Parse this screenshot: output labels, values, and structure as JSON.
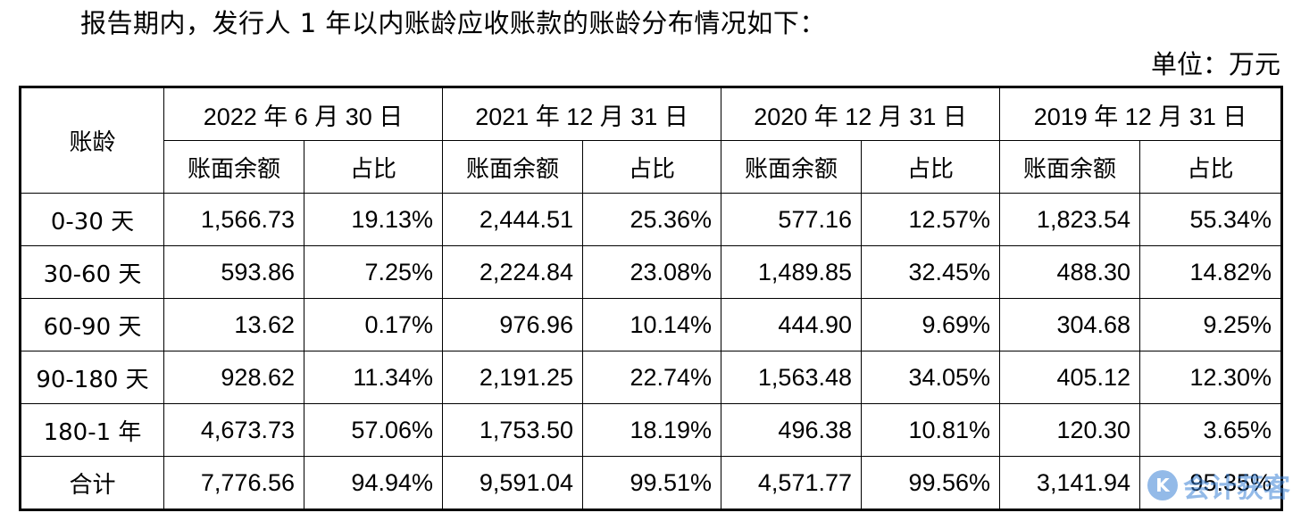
{
  "intro_text": "报告期内，发行人 1 年以内账龄应收账款的账龄分布情况如下：",
  "unit_text": "单位：万元",
  "table": {
    "row_header": "账龄",
    "periods": [
      "2022 年 6 月 30 日",
      "2021 年 12 月 31 日",
      "2020 年 12 月 31 日",
      "2019 年 12 月 31 日"
    ],
    "sub_headers": [
      "账面余额",
      "占比",
      "账面余额",
      "占比",
      "账面余额",
      "占比",
      "账面余额",
      "占比"
    ],
    "rows": [
      {
        "label": "0-30 天",
        "cells": [
          "1,566.73",
          "19.13%",
          "2,444.51",
          "25.36%",
          "577.16",
          "12.57%",
          "1,823.54",
          "55.34%"
        ]
      },
      {
        "label": "30-60 天",
        "cells": [
          "593.86",
          "7.25%",
          "2,224.84",
          "23.08%",
          "1,489.85",
          "32.45%",
          "488.30",
          "14.82%"
        ]
      },
      {
        "label": "60-90 天",
        "cells": [
          "13.62",
          "0.17%",
          "976.96",
          "10.14%",
          "444.90",
          "9.69%",
          "304.68",
          "9.25%"
        ]
      },
      {
        "label": "90-180 天",
        "cells": [
          "928.62",
          "11.34%",
          "2,191.25",
          "22.74%",
          "1,563.48",
          "34.05%",
          "405.12",
          "12.30%"
        ]
      },
      {
        "label": "180-1 年",
        "cells": [
          "4,673.73",
          "57.06%",
          "1,753.50",
          "18.19%",
          "496.38",
          "10.81%",
          "120.30",
          "3.65%"
        ]
      },
      {
        "label": "合计",
        "cells": [
          "7,776.56",
          "94.94%",
          "9,591.04",
          "99.51%",
          "4,571.77",
          "99.56%",
          "3,141.94",
          "95.35%"
        ]
      }
    ]
  },
  "watermark": {
    "logo": "K",
    "text": "会计获客"
  }
}
